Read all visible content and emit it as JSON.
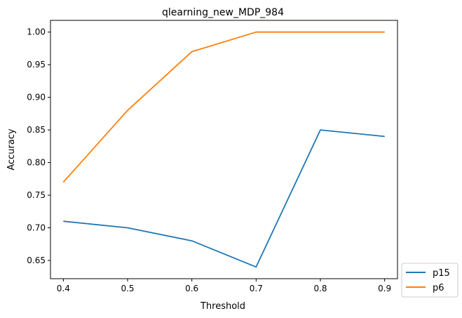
{
  "chart_data": {
    "type": "line",
    "title": "qlearning_new_MDP_984",
    "xlabel": "Threshold",
    "ylabel": "Accuracy",
    "x": [
      0.4,
      0.5,
      0.6,
      0.7,
      0.8,
      0.9
    ],
    "xlim": [
      0.38,
      0.92
    ],
    "ylim": [
      0.622,
      1.018
    ],
    "xticks": [
      "0.4",
      "0.5",
      "0.6",
      "0.7",
      "0.8",
      "0.9"
    ],
    "yticks": [
      "0.65",
      "0.70",
      "0.75",
      "0.80",
      "0.85",
      "0.90",
      "0.95",
      "1.00"
    ],
    "grid": false,
    "legend_position": "outside-lower-right",
    "series": [
      {
        "name": "p15",
        "color": "#1f77b4",
        "values": [
          0.71,
          0.7,
          0.68,
          0.64,
          0.85,
          0.84
        ]
      },
      {
        "name": "p6",
        "color": "#ff7f0e",
        "values": [
          0.77,
          0.88,
          0.97,
          1.0,
          1.0,
          1.0
        ]
      }
    ]
  }
}
